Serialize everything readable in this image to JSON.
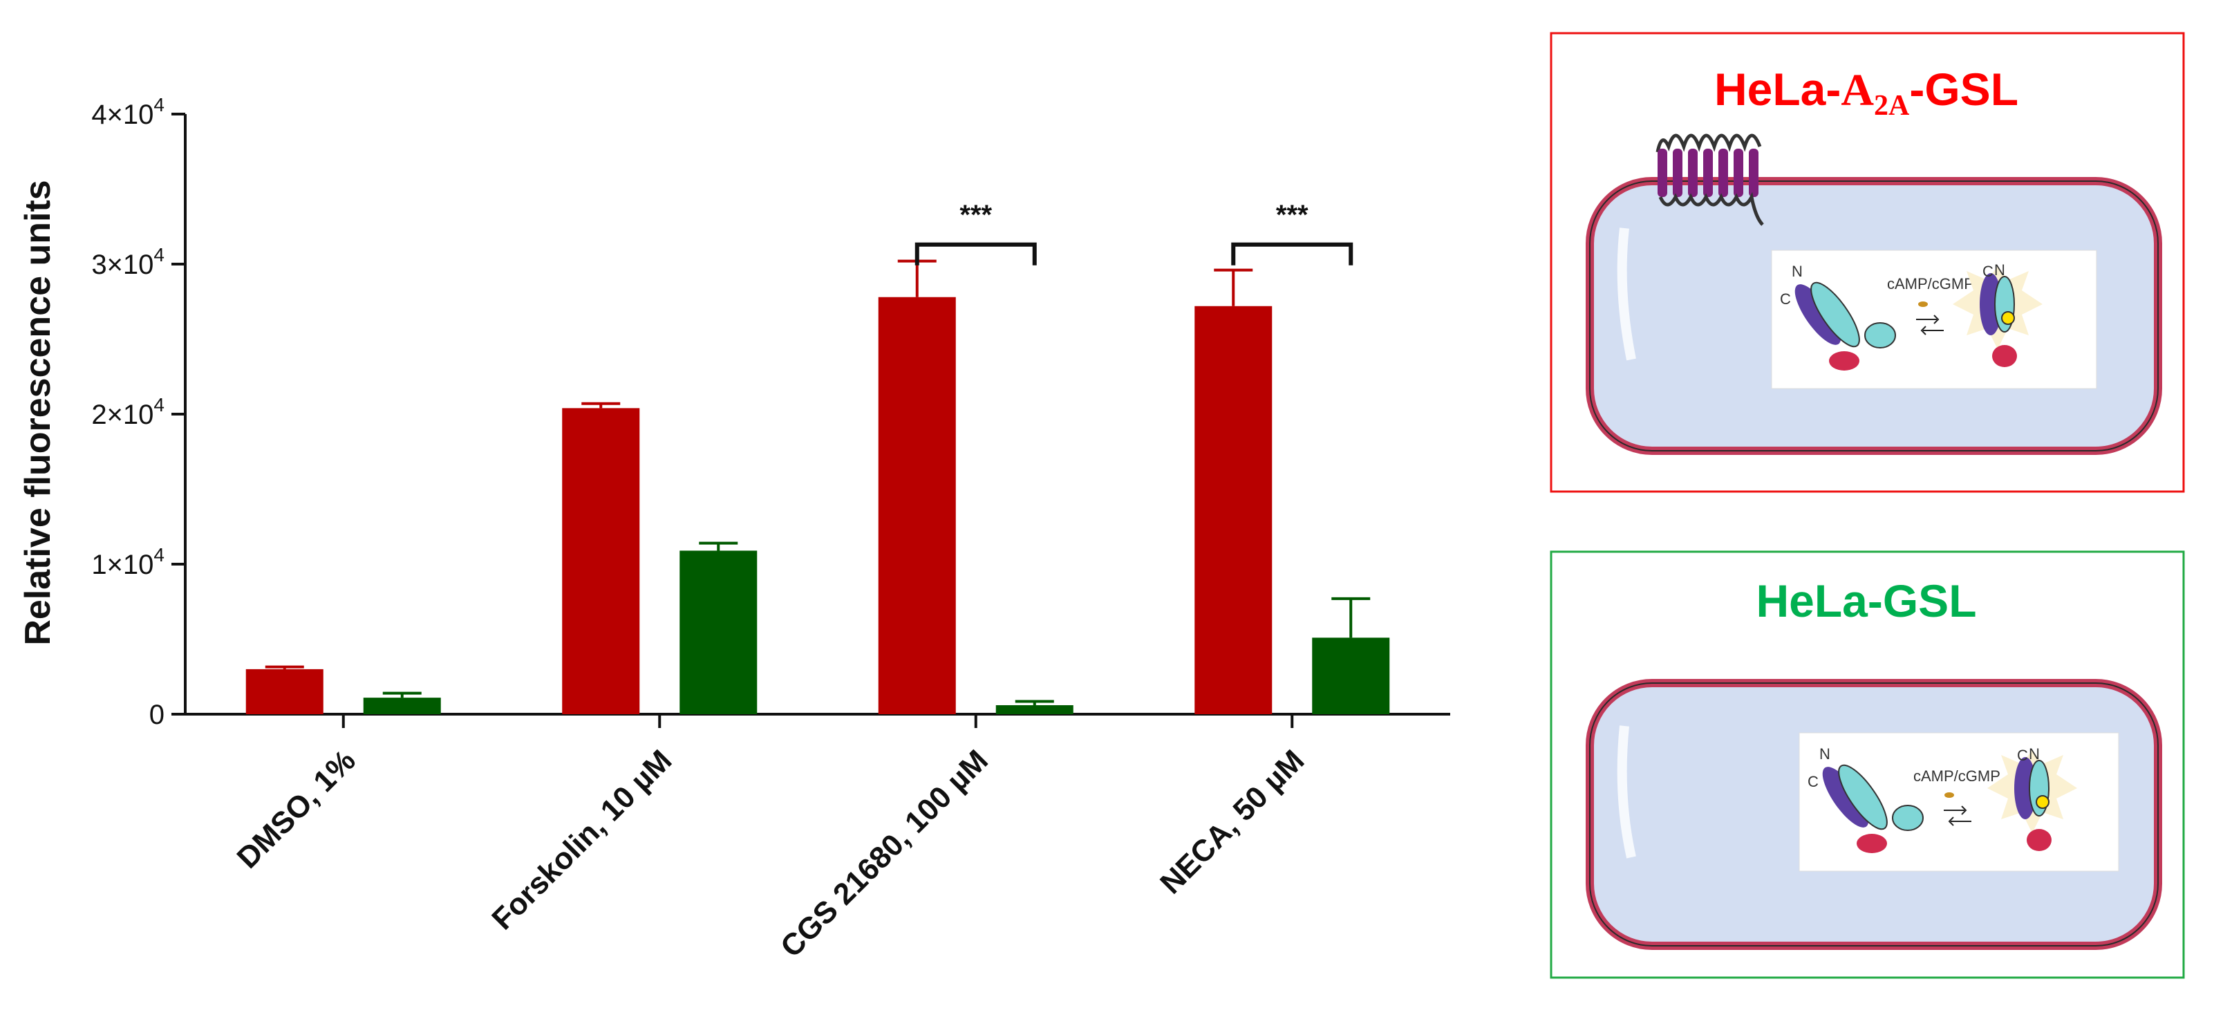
{
  "chart_data": {
    "type": "bar",
    "ylabel": "Relative fluorescence units",
    "ylim": [
      0,
      40000
    ],
    "yticks": [
      0,
      10000,
      20000,
      30000,
      40000
    ],
    "ytick_labels": [
      {
        "mantissa": "0",
        "exp": ""
      },
      {
        "mantissa": "1×10",
        "exp": "4"
      },
      {
        "mantissa": "2×10",
        "exp": "4"
      },
      {
        "mantissa": "3×10",
        "exp": "4"
      },
      {
        "mantissa": "4×10",
        "exp": "4"
      }
    ],
    "categories": [
      "DMSO, 1%",
      "Forskolin, 10 µM",
      "CGS 21680, 100 µM",
      "NECA, 50 µM"
    ],
    "series": [
      {
        "name": "HeLa-A2A-GSL",
        "color": "#b80000",
        "values": [
          3000,
          20400,
          27800,
          27200
        ],
        "errors": [
          150,
          300,
          2400,
          2400
        ]
      },
      {
        "name": "HeLa-GSL",
        "color": "#005a00",
        "values": [
          1100,
          10900,
          600,
          5100
        ],
        "errors": [
          300,
          500,
          250,
          2600
        ]
      }
    ],
    "significance": [
      {
        "category": "CGS 21680, 100 µM",
        "label": "***",
        "y": 31300
      },
      {
        "category": "NECA, 50 µM",
        "label": "***",
        "y": 31300
      }
    ],
    "legend_placement": "right panels"
  },
  "panels": [
    {
      "title_prefix": "HeLa-",
      "title_a": "A",
      "title_sub": "2A",
      "title_suffix": "-GSL",
      "color": "#ff0000",
      "diagram_label": "cAMP/cGMP",
      "n_label": "N",
      "c_label": "C"
    },
    {
      "title": "HeLa-GSL",
      "color": "#00b050",
      "diagram_label": "cAMP/cGMP",
      "n_label": "N",
      "c_label": "C"
    }
  ]
}
